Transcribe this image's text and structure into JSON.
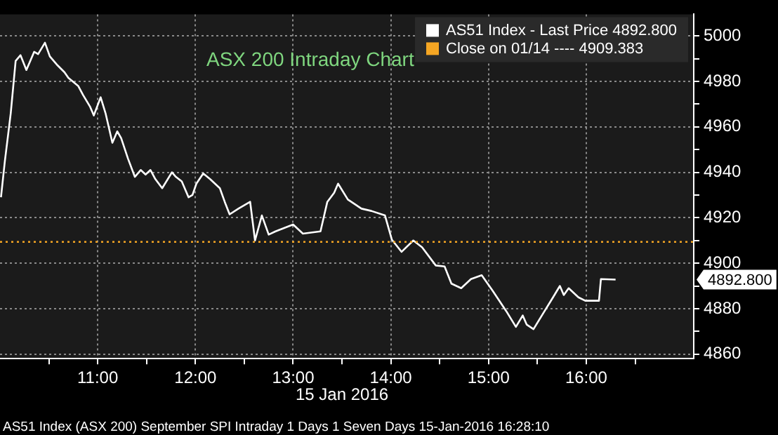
{
  "chart_data": {
    "type": "line",
    "title": "ASX 200 Intraday Chart",
    "xlabel": "15 Jan 2016",
    "annotations": [
      "4892.800",
      "AS51 Index (ASX 200) September SPI Intraday 1 Days 1 Seven Days 15-Jan-2016 16:28:10"
    ],
    "series": [
      {
        "name": "AS51 Index - Last Price 4892.800",
        "color": "#ffffff",
        "x": [
          10.01,
          10.05,
          10.11,
          10.16,
          10.21,
          10.27,
          10.35,
          10.39,
          10.46,
          10.51,
          10.59,
          10.66,
          10.7,
          10.8,
          10.85,
          10.92,
          10.96,
          11.03,
          11.08,
          11.15,
          11.2,
          11.24,
          11.31,
          11.38,
          11.44,
          11.49,
          11.54,
          11.59,
          11.66,
          11.76,
          11.8,
          11.86,
          11.93,
          11.97,
          12.01,
          12.08,
          12.15,
          12.25,
          12.3,
          12.35,
          12.44,
          12.56,
          12.61,
          12.68,
          12.75,
          12.82,
          13.0,
          13.1,
          13.28,
          13.35,
          13.42,
          13.46,
          13.56,
          13.7,
          13.8,
          13.94,
          14.01,
          14.11,
          14.23,
          14.32,
          14.46,
          14.55,
          14.62,
          14.72,
          14.82,
          14.93,
          15.04,
          15.18,
          15.28,
          15.35,
          15.39,
          15.46,
          15.56,
          15.66,
          15.73,
          15.77,
          15.82,
          15.92,
          15.99,
          16.13,
          16.15,
          16.3
        ],
        "values": [
          4929,
          4945,
          4966,
          4989,
          4991.5,
          4985,
          4993,
          4992,
          4997,
          4991,
          4987,
          4984,
          4981.5,
          4978,
          4974,
          4969,
          4965,
          4973,
          4966,
          4953,
          4958,
          4955,
          4946,
          4938,
          4941,
          4939,
          4941,
          4937,
          4933,
          4940,
          4938,
          4936,
          4929,
          4930,
          4935,
          4939.5,
          4937,
          4933,
          4927,
          4921.5,
          4924,
          4927,
          4910,
          4921,
          4912.6,
          4914,
          4917,
          4913,
          4914,
          4927,
          4931,
          4935,
          4928,
          4924,
          4923,
          4921,
          4910.4,
          4905,
          4910,
          4907,
          4899,
          4898.6,
          4891,
          4889,
          4893,
          4894.7,
          4888,
          4879,
          4872,
          4877,
          4873,
          4871,
          4878,
          4885,
          4890,
          4886,
          4889,
          4885,
          4883.5,
          4883.5,
          4893,
          4892.8
        ]
      }
    ],
    "ref_lines": [
      {
        "axis": "y",
        "value": 4909.383,
        "label": "Close on 01/14 ---- 4909.383",
        "color": "#f5a623",
        "line_style": "dotted"
      }
    ],
    "xlim": [
      10,
      17.1
    ],
    "ylim": [
      4858,
      5009.5
    ],
    "xticks": [
      {
        "value": 10.5,
        "label": null
      },
      {
        "value": 11,
        "label": "11:00"
      },
      {
        "value": 11.5,
        "label": null
      },
      {
        "value": 12,
        "label": "12:00"
      },
      {
        "value": 12.5,
        "label": null
      },
      {
        "value": 13,
        "label": "13:00"
      },
      {
        "value": 13.5,
        "label": null
      },
      {
        "value": 14,
        "label": "14:00"
      },
      {
        "value": 14.5,
        "label": null
      },
      {
        "value": 15,
        "label": "15:00"
      },
      {
        "value": 15.5,
        "label": null
      },
      {
        "value": 16,
        "label": "16:00"
      },
      {
        "value": 16.5,
        "label": null
      }
    ],
    "yticks": [
      4860,
      {
        "value": 4870,
        "label": null
      },
      4880,
      {
        "value": 4890,
        "label": null
      },
      4900,
      {
        "value": 4910,
        "label": null
      },
      4920,
      {
        "value": 4930,
        "label": null
      },
      4940,
      {
        "value": 4950,
        "label": null
      },
      4960,
      {
        "value": 4970,
        "label": null
      },
      4980,
      {
        "value": 4990,
        "label": null
      },
      5000
    ],
    "grid": true,
    "legend": "top right",
    "marker": "none",
    "line_style": "solid"
  }
}
